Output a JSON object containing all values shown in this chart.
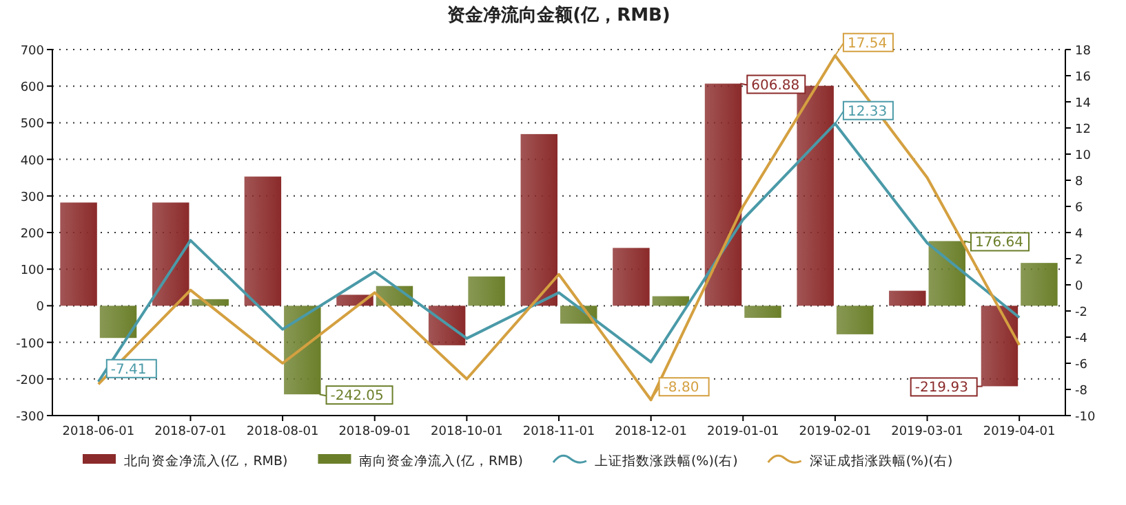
{
  "chart_data": {
    "type": "bar",
    "title": "资金净流向金额(亿，RMB)",
    "categories": [
      "2018-06-01",
      "2018-07-01",
      "2018-08-01",
      "2018-09-01",
      "2018-10-01",
      "2018-11-01",
      "2018-12-01",
      "2019-01-01",
      "2019-02-01",
      "2019-03-01",
      "2019-04-01"
    ],
    "series": [
      {
        "name": "北向资金净流入(亿，RMB)",
        "color": "#8b2a2a",
        "values": [
          282,
          282,
          353,
          30,
          -108,
          469,
          158,
          606.88,
          601,
          41,
          -219.93
        ],
        "value_labels": [
          null,
          null,
          null,
          null,
          null,
          null,
          null,
          "606.88",
          null,
          null,
          "-219.93"
        ]
      },
      {
        "name": "南向资金净流入(亿，RMB)",
        "color": "#6b7f2a",
        "values": [
          -88,
          18,
          -242.05,
          54,
          80,
          -49,
          26,
          -33,
          -78,
          176.64,
          117
        ],
        "value_labels": [
          null,
          null,
          "-242.05",
          null,
          null,
          null,
          null,
          null,
          null,
          "176.64",
          null
        ]
      },
      {
        "name": "上证指数涨跌幅(%)(右)",
        "type": "line",
        "axis": "y2",
        "color": "#4a9aa8",
        "values": [
          -7.41,
          3.4,
          -3.4,
          1.0,
          -4.1,
          -0.6,
          -5.9,
          5.0,
          12.33,
          3.2,
          -2.5
        ],
        "value_labels": [
          "-7.41",
          null,
          null,
          null,
          null,
          null,
          null,
          null,
          "12.33",
          null,
          null
        ]
      },
      {
        "name": "深证成指涨跌幅(%)(右)",
        "type": "line",
        "axis": "y2",
        "color": "#d4a040",
        "values": [
          -7.6,
          -0.4,
          -6.0,
          -0.6,
          -7.2,
          0.8,
          -8.8,
          6.0,
          17.54,
          8.2,
          -4.6
        ],
        "value_labels": [
          null,
          null,
          null,
          null,
          null,
          null,
          "-8.80",
          null,
          "17.54",
          null,
          null
        ]
      }
    ],
    "ylim": [
      -300,
      700
    ],
    "yticks": [
      -300,
      -200,
      -100,
      0,
      100,
      200,
      300,
      400,
      500,
      600,
      700
    ],
    "y2lim": [
      -10,
      18
    ],
    "y2ticks": [
      -10,
      -8,
      -6,
      -4,
      -2,
      0,
      2,
      4,
      6,
      8,
      10,
      12,
      14,
      16,
      18
    ],
    "grid": "y",
    "legend": "bottom"
  }
}
